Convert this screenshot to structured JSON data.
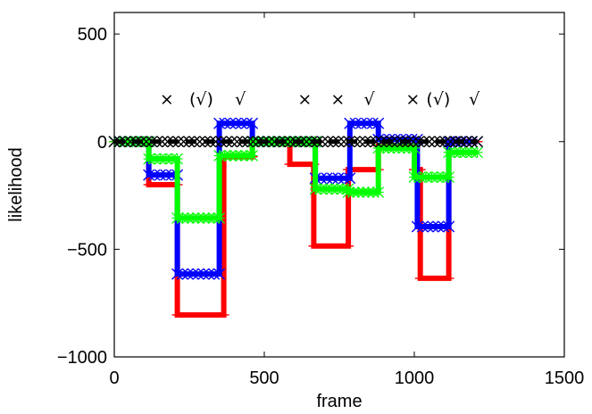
{
  "chart_data": {
    "type": "line",
    "xlabel": "frame",
    "ylabel": "likelihood",
    "xlim": [
      0,
      1500
    ],
    "ylim": [
      -1000,
      600
    ],
    "xticks": [
      0,
      500,
      1000,
      1500
    ],
    "yticks": [
      -1000,
      -500,
      0,
      500
    ],
    "x_tick_labels": [
      "0",
      "500",
      "1000",
      "1500"
    ],
    "y_tick_labels": [
      "−1000",
      "−500",
      "0",
      "500"
    ],
    "grid": false,
    "legend": "none",
    "colors": {
      "red": "#ff0000",
      "blue": "#0000ff",
      "green": "#00ff00",
      "black": "#000000"
    },
    "series": [
      {
        "color": "red",
        "segments": [
          {
            "x0": 0,
            "x1": 115,
            "y": 0
          },
          {
            "x0": 115,
            "x1": 210,
            "y": -200
          },
          {
            "x0": 210,
            "x1": 365,
            "y": -805
          },
          {
            "x0": 365,
            "x1": 460,
            "y": -70
          },
          {
            "x0": 460,
            "x1": 585,
            "y": 0
          },
          {
            "x0": 585,
            "x1": 665,
            "y": -105
          },
          {
            "x0": 665,
            "x1": 780,
            "y": -485
          },
          {
            "x0": 780,
            "x1": 880,
            "y": -130
          },
          {
            "x0": 880,
            "x1": 1000,
            "y": -20
          },
          {
            "x0": 1000,
            "x1": 1020,
            "y": -130
          },
          {
            "x0": 1020,
            "x1": 1115,
            "y": -635
          },
          {
            "x0": 1115,
            "x1": 1210,
            "y": 0
          }
        ]
      },
      {
        "color": "blue",
        "segments": [
          {
            "x0": 0,
            "x1": 115,
            "y": 0
          },
          {
            "x0": 115,
            "x1": 210,
            "y": -155
          },
          {
            "x0": 210,
            "x1": 350,
            "y": -615
          },
          {
            "x0": 350,
            "x1": 460,
            "y": 85
          },
          {
            "x0": 460,
            "x1": 670,
            "y": 0
          },
          {
            "x0": 670,
            "x1": 785,
            "y": -170
          },
          {
            "x0": 785,
            "x1": 880,
            "y": 85
          },
          {
            "x0": 880,
            "x1": 1010,
            "y": 10
          },
          {
            "x0": 1010,
            "x1": 1115,
            "y": -395
          },
          {
            "x0": 1115,
            "x1": 1210,
            "y": 0
          }
        ]
      },
      {
        "color": "green",
        "segments": [
          {
            "x0": 0,
            "x1": 115,
            "y": 0
          },
          {
            "x0": 115,
            "x1": 210,
            "y": -80
          },
          {
            "x0": 210,
            "x1": 350,
            "y": -355
          },
          {
            "x0": 350,
            "x1": 460,
            "y": -65
          },
          {
            "x0": 460,
            "x1": 670,
            "y": 0
          },
          {
            "x0": 670,
            "x1": 780,
            "y": -220
          },
          {
            "x0": 780,
            "x1": 880,
            "y": -235
          },
          {
            "x0": 880,
            "x1": 1000,
            "y": -30
          },
          {
            "x0": 1000,
            "x1": 1115,
            "y": -165
          },
          {
            "x0": 1115,
            "x1": 1210,
            "y": -50
          }
        ]
      },
      {
        "color": "black",
        "style": "dashed",
        "segments": [
          {
            "x0": 0,
            "x1": 1210,
            "y": 0
          }
        ]
      }
    ],
    "annotations": [
      {
        "text": "×",
        "x": 175,
        "y": 170
      },
      {
        "text": "(√)",
        "x": 290,
        "y": 170
      },
      {
        "text": "√",
        "x": 420,
        "y": 170
      },
      {
        "text": "×",
        "x": 635,
        "y": 170
      },
      {
        "text": "×",
        "x": 745,
        "y": 170
      },
      {
        "text": "√",
        "x": 850,
        "y": 170
      },
      {
        "text": "×",
        "x": 995,
        "y": 170
      },
      {
        "text": "(√)",
        "x": 1080,
        "y": 170
      },
      {
        "text": "√",
        "x": 1200,
        "y": 170
      }
    ]
  }
}
